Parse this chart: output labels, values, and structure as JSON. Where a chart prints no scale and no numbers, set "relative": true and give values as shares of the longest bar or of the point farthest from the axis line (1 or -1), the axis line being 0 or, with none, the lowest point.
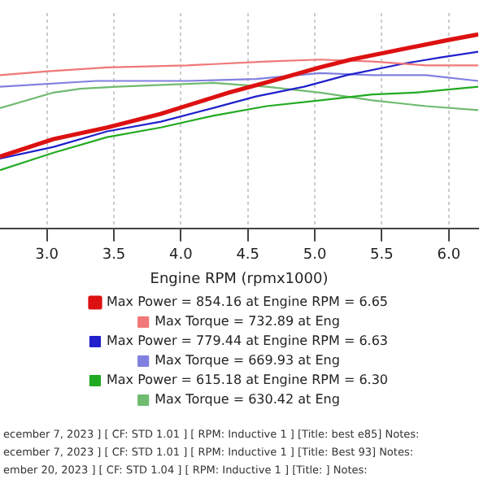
{
  "chart_data": {
    "type": "line",
    "relative": true,
    "xlabel": "Engine RPM (rpmx1000)",
    "xlim": [
      2.65,
      6.22
    ],
    "xticks": [
      {
        "value": 3,
        "label": "3.0"
      },
      {
        "value": 3.5,
        "label": "3.5"
      },
      {
        "value": 4,
        "label": "4.0"
      },
      {
        "value": 4.5,
        "label": "4.5"
      },
      {
        "value": 5,
        "label": "5.0"
      },
      {
        "value": 5.5,
        "label": "5.5"
      },
      {
        "value": 6,
        "label": "6.0"
      }
    ],
    "grid": "x",
    "legend": "bottom",
    "marker": "none",
    "line_style": "solid",
    "tick_labels": "x",
    "series": [
      {
        "name": "Max Power = 854.16 at Engine RPM = 6.65",
        "color": "#dd1111",
        "x": [
          2.65,
          3.05,
          3.45,
          3.85,
          4.08,
          4.36,
          4.68,
          5.04,
          5.27,
          5.63,
          5.99,
          6.22
        ],
        "values": [
          0.37,
          0.46,
          0.52,
          0.59,
          0.64,
          0.7,
          0.76,
          0.83,
          0.87,
          0.92,
          0.97,
          1.0
        ]
      },
      {
        "name": "Max Torque = 732.89 at Eng",
        "color": "#f07878",
        "x": [
          2.65,
          3.01,
          3.45,
          4.05,
          4.64,
          5.04,
          5.43,
          5.83,
          6.22
        ],
        "values": [
          0.79,
          0.81,
          0.83,
          0.84,
          0.86,
          0.87,
          0.86,
          0.84,
          0.84
        ]
      },
      {
        "name": "Max Power = 779.44 at Engine RPM = 6.63",
        "color": "#2020cc",
        "x": [
          2.65,
          3.05,
          3.45,
          3.85,
          4.24,
          4.56,
          4.92,
          5.24,
          5.67,
          5.93,
          6.22
        ],
        "values": [
          0.36,
          0.42,
          0.5,
          0.55,
          0.62,
          0.68,
          0.73,
          0.79,
          0.85,
          0.88,
          0.91
        ]
      },
      {
        "name": "Max Torque = 669.93 at Eng",
        "color": "#8080e0",
        "x": [
          2.65,
          3.37,
          3.64,
          4.05,
          4.56,
          5.04,
          5.43,
          5.83,
          6.22
        ],
        "values": [
          0.73,
          0.76,
          0.76,
          0.76,
          0.77,
          0.8,
          0.79,
          0.79,
          0.76
        ]
      },
      {
        "name": "Max Power = 615.18 at Engine RPM = 6.30",
        "color": "#22aa22",
        "x": [
          2.65,
          3.05,
          3.45,
          3.85,
          4.24,
          4.64,
          5.04,
          5.43,
          5.75,
          6.22
        ],
        "values": [
          0.3,
          0.39,
          0.47,
          0.52,
          0.58,
          0.63,
          0.66,
          0.69,
          0.7,
          0.73
        ]
      },
      {
        "name": "Max Torque = 630.42 at Eng",
        "color": "#70bb70",
        "x": [
          2.65,
          3.05,
          3.25,
          3.52,
          4.24,
          4.64,
          5.04,
          5.43,
          5.83,
          6.22
        ],
        "values": [
          0.62,
          0.7,
          0.72,
          0.73,
          0.75,
          0.73,
          0.7,
          0.66,
          0.63,
          0.61
        ]
      }
    ],
    "annotations": [
      "ecember 7, 2023 ] [ CF: STD 1.01 ] [ RPM: Inductive 1 ] [Title: best e85] Notes:",
      "ecember 7, 2023 ] [ CF: STD 1.01 ] [ RPM: Inductive 1 ] [Title: Best 93] Notes:",
      "ember 20, 2023 ] [ CF: STD 1.04 ] [ RPM: Inductive 1 ] [Title: ] Notes:"
    ]
  }
}
